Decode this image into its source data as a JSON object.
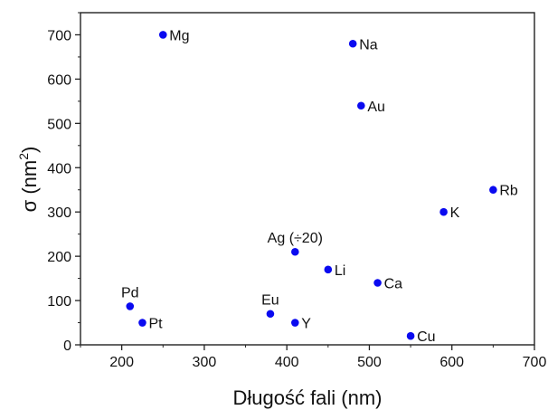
{
  "chart_data": {
    "type": "scatter",
    "title": "",
    "xlabel": "Długość fali (nm)",
    "ylabel": "σ (nm²)",
    "ylabel_base": "σ (nm",
    "ylabel_sup": "2",
    "ylabel_close": ")",
    "xlim": [
      150,
      700
    ],
    "ylim": [
      0,
      750
    ],
    "x_ticks": [
      200,
      300,
      400,
      500,
      600,
      700
    ],
    "y_ticks": [
      0,
      100,
      200,
      300,
      400,
      500,
      600,
      700
    ],
    "grid": false,
    "legend": "none",
    "marker_color": "#0a0af0",
    "points": [
      {
        "label": "Mg",
        "x": 250,
        "y": 700,
        "anchor": "right"
      },
      {
        "label": "Na",
        "x": 480,
        "y": 680,
        "anchor": "right"
      },
      {
        "label": "Au",
        "x": 490,
        "y": 540,
        "anchor": "right"
      },
      {
        "label": "Rb",
        "x": 650,
        "y": 350,
        "anchor": "right"
      },
      {
        "label": "K",
        "x": 590,
        "y": 300,
        "anchor": "right"
      },
      {
        "label": "Ag (÷20)",
        "x": 410,
        "y": 210,
        "anchor": "above"
      },
      {
        "label": "Li",
        "x": 450,
        "y": 170,
        "anchor": "right"
      },
      {
        "label": "Ca",
        "x": 510,
        "y": 140,
        "anchor": "right"
      },
      {
        "label": "Pd",
        "x": 210,
        "y": 87,
        "anchor": "above"
      },
      {
        "label": "Pt",
        "x": 225,
        "y": 50,
        "anchor": "right"
      },
      {
        "label": "Eu",
        "x": 380,
        "y": 70,
        "anchor": "above"
      },
      {
        "label": "Y",
        "x": 410,
        "y": 50,
        "anchor": "right"
      },
      {
        "label": "Cu",
        "x": 550,
        "y": 20,
        "anchor": "right"
      }
    ]
  }
}
